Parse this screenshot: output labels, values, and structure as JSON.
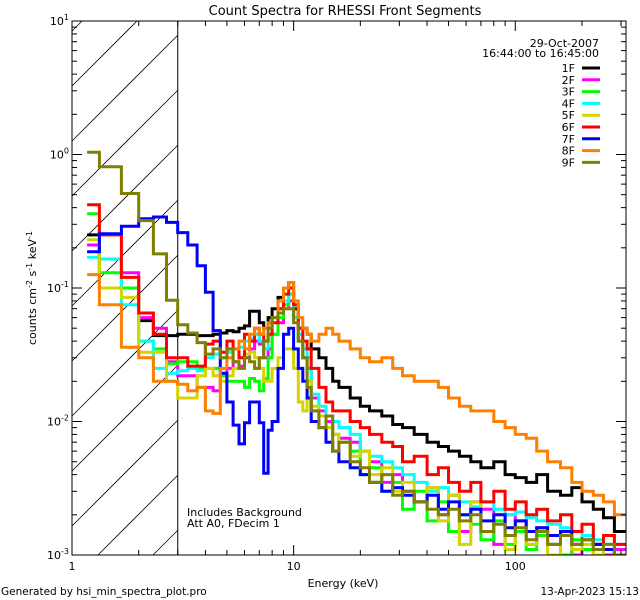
{
  "chart_data": {
    "type": "line",
    "title": "Count Spectra for RHESSI Front Segments",
    "xlabel": "Energy (keV)",
    "ylabel": {
      "base": "counts cm",
      "parts": [
        [
          "-2",
          " s"
        ],
        [
          "-1",
          " keV"
        ],
        [
          "-1",
          ""
        ]
      ]
    },
    "xscale": "log",
    "yscale": "log",
    "xlim": [
      1,
      316
    ],
    "ylim": [
      0.001,
      10
    ],
    "xticks": [
      {
        "value": 1,
        "label": "1"
      },
      {
        "value": 10,
        "label": "10"
      },
      {
        "value": 100,
        "label": "100"
      }
    ],
    "yticks": [
      {
        "value": 10,
        "base": "10",
        "exp": "1"
      },
      {
        "value": 1,
        "base": "10",
        "exp": "0"
      },
      {
        "value": 0.1,
        "base": "10",
        "exp": "-1"
      },
      {
        "value": 0.01,
        "base": "10",
        "exp": "-2"
      },
      {
        "value": 0.001,
        "base": "10",
        "exp": "-3"
      }
    ],
    "date": "29-Oct-2007",
    "time_range": "16:44:00 to 16:45:00",
    "hatched_region_keV": [
      1,
      3
    ],
    "annotations": [
      "Includes Background",
      "Att A0, FDecim 1"
    ],
    "legend_position": "top-right",
    "energy_edges": [
      1.17,
      1.33,
      1.67,
      2,
      2.33,
      2.67,
      3,
      3.33,
      3.67,
      4,
      4.33,
      4.67,
      5,
      5.33,
      5.67,
      6,
      6.33,
      6.67,
      7,
      7.33,
      7.67,
      8,
      8.5,
      9,
      9.5,
      10,
      10.5,
      11,
      11.5,
      12,
      13,
      14,
      15,
      16,
      18,
      20,
      22,
      25,
      28,
      31,
      35,
      40,
      45,
      50,
      56,
      63,
      70,
      80,
      90,
      100,
      112,
      125,
      140,
      160,
      180,
      200,
      225,
      250,
      280,
      316
    ],
    "series": [
      {
        "name": "1F",
        "color": "#000000",
        "values": [
          0.25,
          0.1,
          0.1,
          0.057,
          0.044,
          0.044,
          0.045,
          0.045,
          0.044,
          0.044,
          0.045,
          0.046,
          0.048,
          0.047,
          0.05,
          0.052,
          0.067,
          0.067,
          0.055,
          0.05,
          0.06,
          0.07,
          0.085,
          0.1,
          0.11,
          0.07,
          0.05,
          0.05,
          0.045,
          0.035,
          0.03,
          0.025,
          0.02,
          0.018,
          0.015,
          0.013,
          0.012,
          0.011,
          0.0095,
          0.009,
          0.008,
          0.007,
          0.0065,
          0.006,
          0.0055,
          0.005,
          0.0045,
          0.005,
          0.004,
          0.0038,
          0.0035,
          0.004,
          0.003,
          0.0028,
          0.0032,
          0.0025,
          0.0022,
          0.0019,
          0.0015
        ]
      },
      {
        "name": "2F",
        "color": "#ff00ff",
        "values": [
          0.21,
          0.165,
          0.13,
          0.06,
          0.05,
          0.028,
          0.022,
          0.022,
          0.018,
          0.018,
          0.017,
          0.022,
          0.025,
          0.028,
          0.026,
          0.03,
          0.035,
          0.04,
          0.038,
          0.03,
          0.035,
          0.045,
          0.055,
          0.07,
          0.08,
          0.06,
          0.04,
          0.03,
          0.025,
          0.015,
          0.012,
          0.01,
          0.008,
          0.0075,
          0.007,
          0.006,
          0.005,
          0.0035,
          0.004,
          0.003,
          0.0025,
          0.0032,
          0.002,
          0.0028,
          0.0015,
          0.0025,
          0.0022,
          0.0012,
          0.002,
          0.0018,
          0.0012,
          0.0016,
          0.0012,
          0.0015,
          0.001,
          0.0014,
          0.0012,
          0.001,
          0.0011
        ]
      },
      {
        "name": "3F",
        "color": "#00ff00",
        "values": [
          0.36,
          0.13,
          0.1,
          0.04,
          0.035,
          0.027,
          0.028,
          0.028,
          0.025,
          0.025,
          0.025,
          0.022,
          0.02,
          0.02,
          0.02,
          0.018,
          0.021,
          0.02,
          0.017,
          0.021,
          0.03,
          0.045,
          0.06,
          0.075,
          0.09,
          0.06,
          0.04,
          0.03,
          0.025,
          0.012,
          0.011,
          0.009,
          0.008,
          0.007,
          0.006,
          0.004,
          0.0045,
          0.003,
          0.0035,
          0.0022,
          0.003,
          0.0018,
          0.0025,
          0.0015,
          0.002,
          0.0017,
          0.0013,
          0.0018,
          0.0012,
          0.0015,
          0.0011,
          0.0014,
          0.0012,
          0.001,
          0.0013,
          0.0011,
          0.001,
          0.0012,
          0.001
        ]
      },
      {
        "name": "4F",
        "color": "#00ffff",
        "values": [
          0.17,
          0.165,
          0.075,
          0.04,
          0.025,
          0.023,
          0.024,
          0.025,
          0.024,
          0.03,
          0.032,
          0.03,
          0.033,
          0.035,
          0.036,
          0.04,
          0.042,
          0.045,
          0.04,
          0.035,
          0.045,
          0.06,
          0.07,
          0.08,
          0.09,
          0.06,
          0.045,
          0.035,
          0.03,
          0.016,
          0.013,
          0.011,
          0.01,
          0.009,
          0.008,
          0.006,
          0.0055,
          0.005,
          0.0045,
          0.004,
          0.0035,
          0.003,
          0.0032,
          0.0028,
          0.0025,
          0.0023,
          0.0025,
          0.0022,
          0.002,
          0.0021,
          0.0019,
          0.0018,
          0.0017,
          0.0016,
          0.0015,
          0.0014,
          0.0013,
          0.0012,
          0.0012
        ]
      },
      {
        "name": "5F",
        "color": "#d4d400",
        "values": [
          0.23,
          0.1,
          0.085,
          0.033,
          0.033,
          0.02,
          0.015,
          0.015,
          0.022,
          0.025,
          0.022,
          0.02,
          0.022,
          0.025,
          0.03,
          0.032,
          0.033,
          0.03,
          0.025,
          0.02,
          0.02,
          0.025,
          0.03,
          0.035,
          0.035,
          0.025,
          0.014,
          0.012,
          0.02,
          0.013,
          0.011,
          0.009,
          0.008,
          0.007,
          0.0055,
          0.006,
          0.004,
          0.0045,
          0.003,
          0.0035,
          0.0025,
          0.0032,
          0.0018,
          0.0028,
          0.0012,
          0.0025,
          0.0015,
          0.002,
          0.0011,
          0.0018,
          0.0012,
          0.0015,
          0.001,
          0.0014,
          0.0011,
          0.0012,
          0.001,
          0.0011,
          0.001
        ]
      },
      {
        "name": "6F",
        "color": "#ff0000",
        "values": [
          0.42,
          0.25,
          0.12,
          0.065,
          0.045,
          0.03,
          0.03,
          0.026,
          0.026,
          0.038,
          0.04,
          0.033,
          0.04,
          0.035,
          0.03,
          0.045,
          0.04,
          0.05,
          0.045,
          0.04,
          0.045,
          0.055,
          0.07,
          0.09,
          0.1,
          0.075,
          0.05,
          0.04,
          0.035,
          0.025,
          0.018,
          0.014,
          0.012,
          0.012,
          0.01,
          0.009,
          0.008,
          0.007,
          0.0065,
          0.005,
          0.0055,
          0.004,
          0.0045,
          0.0035,
          0.003,
          0.0035,
          0.0025,
          0.003,
          0.0022,
          0.0025,
          0.002,
          0.0022,
          0.0018,
          0.002,
          0.0015,
          0.0017,
          0.0012,
          0.0014,
          0.0012
        ]
      },
      {
        "name": "7F",
        "color": "#0000ff",
        "values": [
          0.187,
          0.255,
          0.29,
          0.33,
          0.34,
          0.31,
          0.26,
          0.21,
          0.147,
          0.093,
          0.048,
          0.023,
          0.014,
          0.0094,
          0.0068,
          0.0098,
          0.014,
          0.014,
          0.0098,
          0.0041,
          0.0086,
          0.01,
          0.025,
          0.045,
          0.05,
          0.035,
          0.025,
          0.02,
          0.015,
          0.01,
          0.009,
          0.007,
          0.006,
          0.005,
          0.0045,
          0.004,
          0.0035,
          0.003,
          0.0032,
          0.0028,
          0.0025,
          0.0028,
          0.0022,
          0.0025,
          0.002,
          0.0022,
          0.0018,
          0.002,
          0.0016,
          0.0018,
          0.0015,
          0.0016,
          0.0014,
          0.0015,
          0.0012,
          0.0013,
          0.0012,
          0.0011,
          0.001
        ]
      },
      {
        "name": "8F",
        "color": "#ff8000",
        "values": [
          0.126,
          0.075,
          0.036,
          0.03,
          0.02,
          0.02,
          0.019,
          0.017,
          0.018,
          0.012,
          0.0115,
          0.025,
          0.03,
          0.035,
          0.04,
          0.035,
          0.045,
          0.05,
          0.045,
          0.05,
          0.055,
          0.06,
          0.08,
          0.1,
          0.11,
          0.08,
          0.06,
          0.05,
          0.045,
          0.04,
          0.045,
          0.05,
          0.045,
          0.04,
          0.035,
          0.03,
          0.028,
          0.03,
          0.025,
          0.022,
          0.02,
          0.02,
          0.018,
          0.015,
          0.013,
          0.012,
          0.012,
          0.01,
          0.009,
          0.008,
          0.0075,
          0.006,
          0.005,
          0.0045,
          0.0035,
          0.003,
          0.0028,
          0.0025,
          0.002
        ]
      },
      {
        "name": "9F",
        "color": "#808000",
        "values": [
          1.04,
          0.81,
          0.51,
          0.32,
          0.18,
          0.081,
          0.053,
          0.046,
          0.039,
          0.032,
          0.035,
          0.03,
          0.035,
          0.028,
          0.025,
          0.03,
          0.028,
          0.025,
          0.03,
          0.04,
          0.05,
          0.06,
          0.065,
          0.07,
          0.07,
          0.055,
          0.04,
          0.03,
          0.018,
          0.012,
          0.009,
          0.011,
          0.006,
          0.007,
          0.005,
          0.0045,
          0.0035,
          0.004,
          0.0028,
          0.003,
          0.0025,
          0.0022,
          0.002,
          0.0022,
          0.0018,
          0.002,
          0.0015,
          0.0017,
          0.0014,
          0.0016,
          0.0013,
          0.0015,
          0.0012,
          0.0014,
          0.0012,
          0.0013,
          0.0011,
          0.0012,
          0.001
        ]
      }
    ]
  },
  "footer": {
    "generated_by": "Generated by hsi_min_spectra_plot.pro",
    "timestamp": "13-Apr-2023 15:13"
  }
}
